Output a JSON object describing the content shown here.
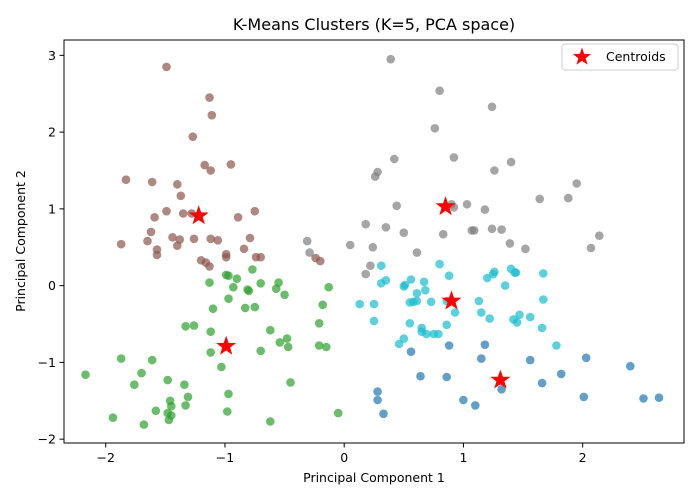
{
  "chart_data": {
    "type": "scatter",
    "title": "K-Means Clusters (K=5, PCA space)",
    "xlabel": "Principal Component 1",
    "ylabel": "Principal Component 2",
    "xlim": [
      -2.35,
      2.85
    ],
    "ylim": [
      -2.05,
      3.2
    ],
    "xticks": [
      -2,
      -1,
      0,
      1,
      2
    ],
    "yticks": [
      -2,
      -1,
      0,
      1,
      2,
      3
    ],
    "xtick_labels": [
      "−2",
      "−1",
      "0",
      "1",
      "2"
    ],
    "ytick_labels": [
      "−2",
      "−1",
      "0",
      "1",
      "2",
      "3"
    ],
    "grid": false,
    "legend": {
      "position": "top-right",
      "entries": [
        "Centroids"
      ]
    },
    "series": [
      {
        "color": "#8c564b",
        "points": [
          [
            -1.49,
            2.85
          ],
          [
            -1.13,
            2.45
          ],
          [
            -1.11,
            2.22
          ],
          [
            -1.27,
            1.94
          ],
          [
            -1.17,
            1.57
          ],
          [
            -0.95,
            1.58
          ],
          [
            -1.12,
            1.5
          ],
          [
            -1.83,
            1.38
          ],
          [
            -1.61,
            1.35
          ],
          [
            -1.4,
            1.32
          ],
          [
            -1.37,
            1.17
          ],
          [
            -1.59,
            0.89
          ],
          [
            -1.49,
            0.97
          ],
          [
            -1.35,
            0.94
          ],
          [
            -1.28,
            0.94
          ],
          [
            -0.89,
            0.89
          ],
          [
            -0.75,
            0.97
          ],
          [
            -1.62,
            0.7
          ],
          [
            -1.44,
            0.63
          ],
          [
            -1.38,
            0.6
          ],
          [
            -1.65,
            0.58
          ],
          [
            -1.26,
            0.61
          ],
          [
            -1.12,
            0.61
          ],
          [
            -1.06,
            0.59
          ],
          [
            -0.99,
            0.41
          ],
          [
            -0.99,
            0.37
          ],
          [
            -1.87,
            0.54
          ],
          [
            -1.4,
            0.52
          ],
          [
            -1.57,
            0.47
          ],
          [
            -1.57,
            0.4
          ],
          [
            -0.84,
            0.48
          ],
          [
            -0.74,
            0.37
          ],
          [
            -0.7,
            0.37
          ],
          [
            -1.2,
            0.33
          ],
          [
            -1.16,
            0.3
          ],
          [
            -1.13,
            0.25
          ],
          [
            -0.79,
            0.62
          ],
          [
            -0.24,
            0.36
          ],
          [
            -0.2,
            0.32
          ]
        ]
      },
      {
        "color": "#7f7f7f",
        "points": [
          [
            0.39,
            2.95
          ],
          [
            0.8,
            2.54
          ],
          [
            1.24,
            2.33
          ],
          [
            0.76,
            2.05
          ],
          [
            0.92,
            1.67
          ],
          [
            0.42,
            1.65
          ],
          [
            0.28,
            1.48
          ],
          [
            0.26,
            1.42
          ],
          [
            1.26,
            1.5
          ],
          [
            1.4,
            1.61
          ],
          [
            1.95,
            1.33
          ],
          [
            1.64,
            1.13
          ],
          [
            1.88,
            1.14
          ],
          [
            0.44,
            1.04
          ],
          [
            0.9,
            1.06
          ],
          [
            1.03,
            1.06
          ],
          [
            1.18,
            0.99
          ],
          [
            0.92,
            1.02
          ],
          [
            0.18,
            0.8
          ],
          [
            0.35,
            0.76
          ],
          [
            0.5,
            0.69
          ],
          [
            1.07,
            0.72
          ],
          [
            1.09,
            0.72
          ],
          [
            1.24,
            0.74
          ],
          [
            1.32,
            0.73
          ],
          [
            1.39,
            0.55
          ],
          [
            1.52,
            0.48
          ],
          [
            2.14,
            0.65
          ],
          [
            2.07,
            0.49
          ],
          [
            -0.31,
            0.58
          ],
          [
            -0.29,
            0.43
          ],
          [
            0.05,
            0.53
          ],
          [
            0.24,
            0.5
          ],
          [
            0.83,
            0.67
          ],
          [
            0.61,
            0.43
          ],
          [
            0.22,
            0.26
          ],
          [
            0.18,
            0.15
          ]
        ]
      },
      {
        "color": "#2ca02c",
        "points": [
          [
            -0.99,
            0.14
          ],
          [
            -0.97,
            0.13
          ],
          [
            -0.77,
            0.21
          ],
          [
            -0.7,
            0.03
          ],
          [
            -0.55,
            0.04
          ],
          [
            -0.57,
            -0.04
          ],
          [
            -0.5,
            -0.12
          ],
          [
            -0.9,
            0.09
          ],
          [
            -0.93,
            -0.02
          ],
          [
            -1.13,
            0.04
          ],
          [
            -0.8,
            -0.07
          ],
          [
            -0.81,
            -0.05
          ],
          [
            -0.97,
            -0.17
          ],
          [
            -1.1,
            -0.3
          ],
          [
            -0.18,
            -0.25
          ],
          [
            -0.13,
            -0.02
          ],
          [
            -0.83,
            -0.29
          ],
          [
            -0.75,
            -0.28
          ],
          [
            -1.33,
            -0.53
          ],
          [
            -1.26,
            -0.52
          ],
          [
            -1.12,
            -0.6
          ],
          [
            -0.21,
            -0.49
          ],
          [
            -0.62,
            -0.58
          ],
          [
            -0.54,
            -0.74
          ],
          [
            -0.48,
            -0.69
          ],
          [
            -0.47,
            -0.8
          ],
          [
            -0.21,
            -0.78
          ],
          [
            -0.15,
            -0.8
          ],
          [
            -0.7,
            -0.85
          ],
          [
            -1.12,
            -0.87
          ],
          [
            -1.03,
            -1.06
          ],
          [
            -1.87,
            -0.95
          ],
          [
            -1.61,
            -0.97
          ],
          [
            -1.7,
            -1.14
          ],
          [
            -2.17,
            -1.16
          ],
          [
            -1.76,
            -1.29
          ],
          [
            -1.48,
            -1.23
          ],
          [
            -1.34,
            -1.29
          ],
          [
            -0.45,
            -1.26
          ],
          [
            -0.97,
            -1.41
          ],
          [
            -1.46,
            -1.5
          ],
          [
            -1.31,
            -1.45
          ],
          [
            -1.45,
            -1.57
          ],
          [
            -1.33,
            -1.56
          ],
          [
            -1.58,
            -1.63
          ],
          [
            -1.48,
            -1.66
          ],
          [
            -1.45,
            -1.69
          ],
          [
            -1.47,
            -1.75
          ],
          [
            -1.94,
            -1.72
          ],
          [
            -1.68,
            -1.81
          ],
          [
            -0.98,
            -1.64
          ],
          [
            -0.62,
            -1.77
          ],
          [
            -0.05,
            -1.66
          ]
        ]
      },
      {
        "color": "#17becf",
        "points": [
          [
            0.8,
            0.28
          ],
          [
            0.31,
            0.26
          ],
          [
            1.26,
            0.18
          ],
          [
            1.25,
            0.15
          ],
          [
            1.2,
            0.1
          ],
          [
            1.4,
            0.22
          ],
          [
            1.43,
            0.17
          ],
          [
            1.44,
            0.17
          ],
          [
            1.67,
            0.16
          ],
          [
            0.56,
            0.08
          ],
          [
            0.35,
            0.07
          ],
          [
            0.67,
            0.05
          ],
          [
            0.31,
            0.03
          ],
          [
            0.51,
            0.01
          ],
          [
            0.5,
            -0.01
          ],
          [
            0.61,
            -0.1
          ],
          [
            0.68,
            -0.06
          ],
          [
            1.35,
            0.0
          ],
          [
            0.13,
            -0.24
          ],
          [
            0.25,
            -0.24
          ],
          [
            0.55,
            -0.22
          ],
          [
            0.58,
            -0.21
          ],
          [
            0.73,
            -0.21
          ],
          [
            0.86,
            -0.2
          ],
          [
            1.67,
            -0.18
          ],
          [
            0.93,
            -0.35
          ],
          [
            1.13,
            -0.2
          ],
          [
            1.15,
            -0.35
          ],
          [
            1.22,
            -0.43
          ],
          [
            1.42,
            -0.44
          ],
          [
            1.45,
            -0.48
          ],
          [
            1.47,
            -0.38
          ],
          [
            1.56,
            -0.41
          ],
          [
            0.25,
            -0.46
          ],
          [
            0.55,
            -0.49
          ],
          [
            0.65,
            -0.55
          ],
          [
            0.86,
            -0.51
          ],
          [
            0.65,
            -0.6
          ],
          [
            0.69,
            -0.63
          ],
          [
            0.75,
            -0.63
          ],
          [
            0.79,
            -0.63
          ],
          [
            0.5,
            -0.69
          ],
          [
            0.46,
            -0.76
          ],
          [
            1.66,
            -0.55
          ],
          [
            1.78,
            -0.78
          ],
          [
            0.88,
            0.13
          ],
          [
            0.61,
            -0.2
          ]
        ]
      },
      {
        "color": "#1f77b4",
        "points": [
          [
            0.56,
            -0.86
          ],
          [
            0.88,
            -0.78
          ],
          [
            1.18,
            -0.77
          ],
          [
            1.15,
            -0.95
          ],
          [
            1.56,
            -0.97
          ],
          [
            2.03,
            -0.94
          ],
          [
            2.4,
            -1.05
          ],
          [
            1.82,
            -1.15
          ],
          [
            0.86,
            -1.19
          ],
          [
            0.64,
            -1.18
          ],
          [
            1.66,
            -1.27
          ],
          [
            1.32,
            -1.35
          ],
          [
            0.28,
            -1.38
          ],
          [
            0.28,
            -1.49
          ],
          [
            1.0,
            -1.49
          ],
          [
            1.1,
            -1.56
          ],
          [
            2.01,
            -1.45
          ],
          [
            2.51,
            -1.47
          ],
          [
            2.64,
            -1.46
          ],
          [
            0.33,
            -1.67
          ]
        ]
      }
    ],
    "centroids": {
      "name": "Centroids",
      "color": "#ff0000",
      "points": [
        [
          -1.22,
          0.91
        ],
        [
          0.85,
          1.03
        ],
        [
          -0.99,
          -0.79
        ],
        [
          0.9,
          -0.2
        ],
        [
          1.31,
          -1.23
        ]
      ]
    }
  }
}
